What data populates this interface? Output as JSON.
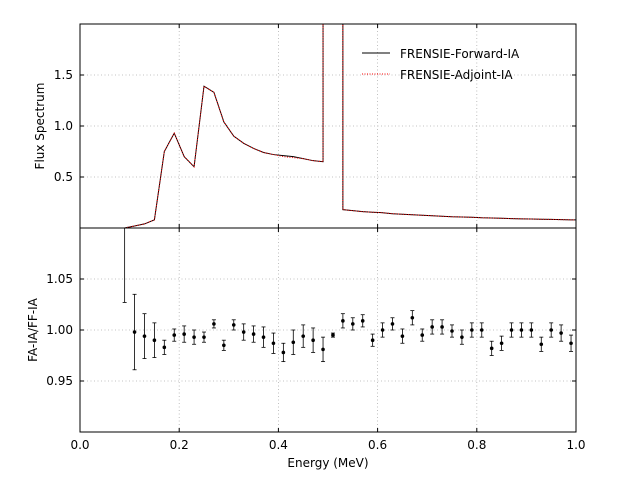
{
  "chart_data": {
    "type": "line",
    "x_ticks": [
      0.0,
      0.2,
      0.4,
      0.6,
      0.8,
      1.0
    ],
    "x_tick_labels": [
      "0.0",
      "0.2",
      "0.4",
      "0.6",
      "0.8",
      "1.0"
    ],
    "xlabel": "Energy (MeV)",
    "xlim": [
      0.0,
      1.0
    ],
    "top": {
      "ylabel": "Flux Spectrum",
      "ylim": [
        0.0,
        2.0
      ],
      "y_ticks": [
        0.5,
        1.0,
        1.5
      ],
      "y_tick_labels": [
        "0.5",
        "1.0",
        "1.5"
      ],
      "grid": true,
      "legend_position": "top-right",
      "series": [
        {
          "name": "FRENSIE-Forward-IA",
          "color": "#000000",
          "style": "solid",
          "x": [
            0.09,
            0.11,
            0.13,
            0.15,
            0.17,
            0.19,
            0.21,
            0.23,
            0.25,
            0.27,
            0.29,
            0.31,
            0.33,
            0.35,
            0.37,
            0.39,
            0.41,
            0.43,
            0.45,
            0.47,
            0.49,
            0.49,
            0.51,
            0.53,
            0.53,
            0.55,
            0.57,
            0.59,
            0.61,
            0.63,
            0.65,
            0.67,
            0.69,
            0.71,
            0.73,
            0.75,
            0.77,
            0.79,
            0.81,
            0.83,
            0.85,
            0.87,
            0.89,
            0.91,
            0.93,
            0.95,
            0.97,
            0.99,
            1.0
          ],
          "y": [
            0.0,
            0.02,
            0.04,
            0.08,
            0.75,
            0.93,
            0.7,
            0.6,
            1.39,
            1.33,
            1.04,
            0.9,
            0.83,
            0.78,
            0.74,
            0.72,
            0.71,
            0.7,
            0.68,
            0.66,
            0.65,
            2.0,
            2.0,
            2.0,
            0.18,
            0.17,
            0.16,
            0.155,
            0.15,
            0.14,
            0.135,
            0.13,
            0.125,
            0.12,
            0.115,
            0.11,
            0.108,
            0.105,
            0.1,
            0.098,
            0.095,
            0.092,
            0.09,
            0.088,
            0.086,
            0.084,
            0.082,
            0.08,
            0.08
          ]
        },
        {
          "name": "FRENSIE-Adjoint-IA",
          "color": "#ff0000",
          "style": "dotted",
          "x": [
            0.09,
            0.11,
            0.13,
            0.15,
            0.17,
            0.19,
            0.21,
            0.23,
            0.25,
            0.27,
            0.29,
            0.31,
            0.33,
            0.35,
            0.37,
            0.39,
            0.41,
            0.43,
            0.45,
            0.47,
            0.49,
            0.49,
            0.51,
            0.53,
            0.53,
            0.55,
            0.57,
            0.59,
            0.61,
            0.63,
            0.65,
            0.67,
            0.69,
            0.71,
            0.73,
            0.75,
            0.77,
            0.79,
            0.81,
            0.83,
            0.85,
            0.87,
            0.89,
            0.91,
            0.93,
            0.95,
            0.97,
            0.99,
            1.0
          ],
          "y": [
            0.0,
            0.02,
            0.04,
            0.08,
            0.75,
            0.93,
            0.7,
            0.6,
            1.39,
            1.33,
            1.04,
            0.9,
            0.83,
            0.78,
            0.74,
            0.72,
            0.7,
            0.69,
            0.68,
            0.66,
            0.65,
            2.0,
            2.0,
            2.0,
            0.18,
            0.17,
            0.16,
            0.155,
            0.15,
            0.14,
            0.135,
            0.13,
            0.125,
            0.12,
            0.115,
            0.11,
            0.108,
            0.105,
            0.1,
            0.098,
            0.095,
            0.092,
            0.09,
            0.088,
            0.086,
            0.084,
            0.082,
            0.08,
            0.08
          ]
        }
      ]
    },
    "bottom": {
      "ylabel": "FA-IA/FF-IA",
      "ylim": [
        0.9,
        1.1
      ],
      "y_ticks": [
        0.95,
        1.0,
        1.05
      ],
      "y_tick_labels": [
        "0.95",
        "1.00",
        "1.05"
      ],
      "grid": true,
      "series": [
        {
          "name": "",
          "color": "#000000",
          "type": "errorbar",
          "x": [
            0.11,
            0.13,
            0.15,
            0.17,
            0.19,
            0.21,
            0.23,
            0.25,
            0.27,
            0.29,
            0.31,
            0.33,
            0.35,
            0.37,
            0.39,
            0.41,
            0.43,
            0.45,
            0.47,
            0.49,
            0.51,
            0.53,
            0.55,
            0.57,
            0.59,
            0.61,
            0.63,
            0.65,
            0.67,
            0.69,
            0.71,
            0.73,
            0.75,
            0.77,
            0.79,
            0.81,
            0.83,
            0.85,
            0.87,
            0.89,
            0.91,
            0.93,
            0.95,
            0.97,
            0.99
          ],
          "y": [
            0.998,
            0.994,
            0.99,
            0.983,
            0.995,
            0.996,
            0.993,
            0.993,
            1.006,
            0.985,
            1.005,
            0.998,
            0.996,
            0.993,
            0.987,
            0.978,
            0.988,
            0.994,
            0.99,
            0.981,
            0.995,
            1.009,
            1.006,
            1.009,
            0.99,
            1.0,
            1.006,
            0.994,
            1.012,
            0.995,
            1.003,
            1.003,
            0.999,
            0.993,
            1.0,
            1.0,
            0.982,
            0.987,
            1.0,
            1.0,
            1.0,
            0.986,
            1.0,
            0.997,
            0.987
          ],
          "err": [
            0.037,
            0.022,
            0.017,
            0.007,
            0.006,
            0.008,
            0.007,
            0.005,
            0.004,
            0.005,
            0.005,
            0.008,
            0.008,
            0.01,
            0.01,
            0.009,
            0.012,
            0.011,
            0.012,
            0.012,
            0.002,
            0.007,
            0.006,
            0.006,
            0.006,
            0.007,
            0.006,
            0.007,
            0.007,
            0.006,
            0.007,
            0.007,
            0.006,
            0.007,
            0.007,
            0.007,
            0.007,
            0.007,
            0.007,
            0.007,
            0.007,
            0.007,
            0.007,
            0.008,
            0.008
          ],
          "first_point": {
            "x": 0.09,
            "y_low": 1.027,
            "y_high": 1.1
          }
        }
      ]
    }
  }
}
